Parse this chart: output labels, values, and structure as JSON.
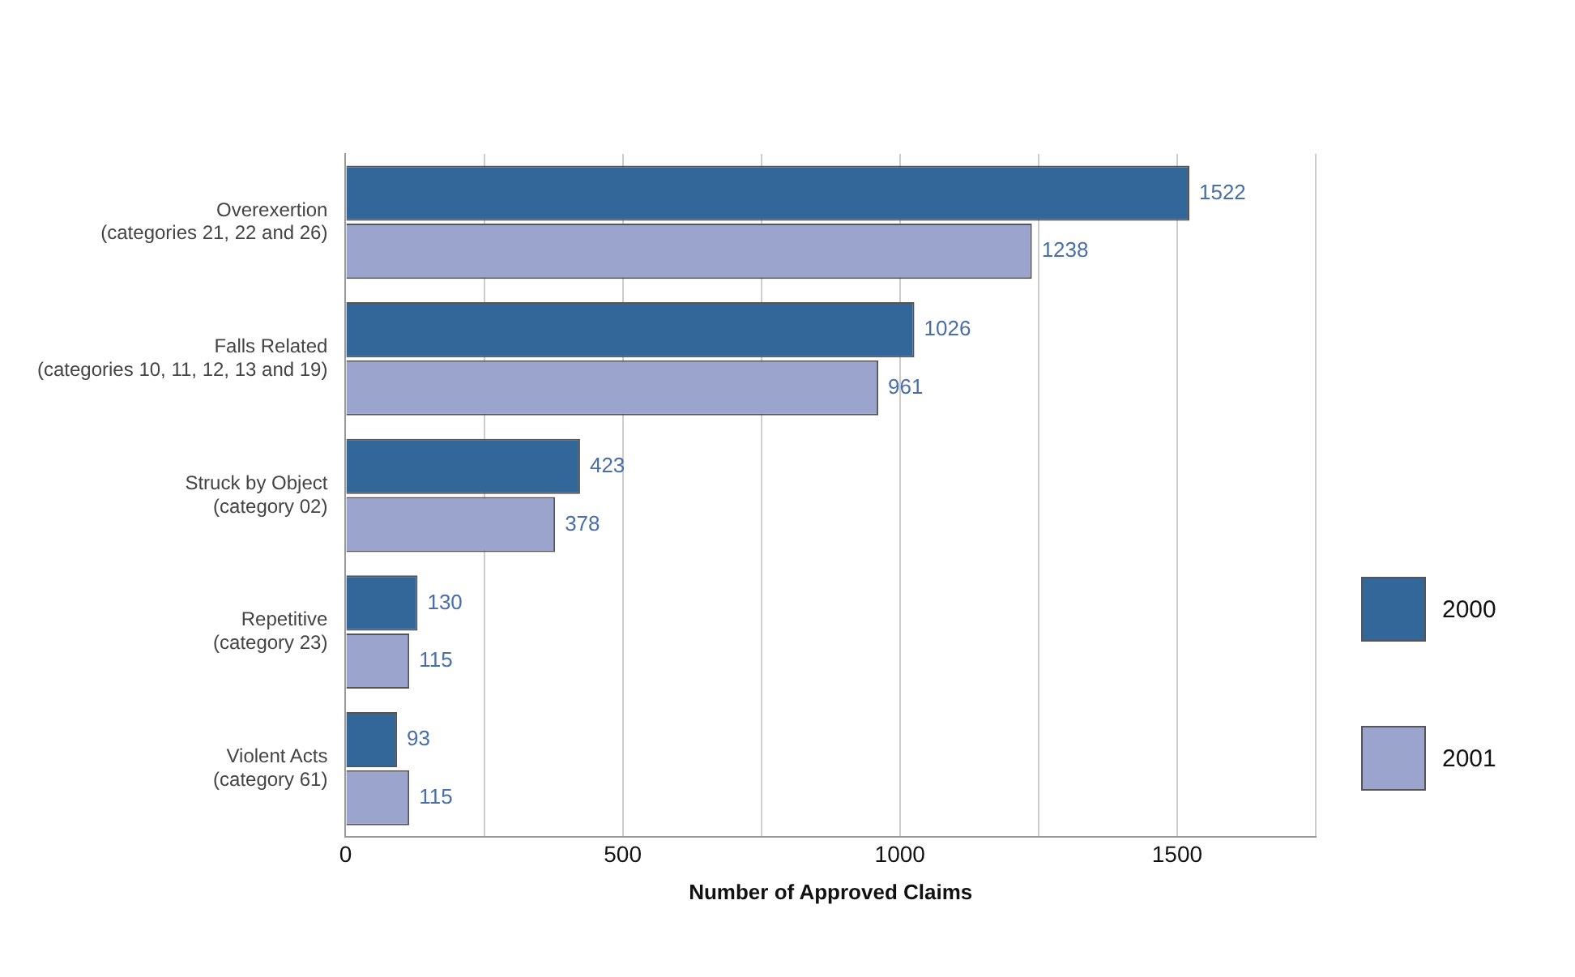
{
  "chart_data": {
    "type": "bar",
    "orientation": "horizontal",
    "xlabel": "Number of Approved Claims",
    "categories": [
      "Overexertion\n(categories 21, 22 and 26)",
      "Falls Related\n(categories 10, 11, 12, 13 and 19)",
      "Struck by Object\n(category 02)",
      "Repetitive\n(category 23)",
      "Violent Acts\n(category 61)"
    ],
    "series": [
      {
        "name": "2000",
        "color": "#336699",
        "values": [
          1522,
          1026,
          423,
          130,
          93
        ]
      },
      {
        "name": "2001",
        "color": "#9aa4cc",
        "values": [
          1238,
          961,
          378,
          115,
          115
        ]
      }
    ],
    "xlim": [
      0,
      1750
    ],
    "xticks": [
      0,
      {
        "value": 250,
        "label": null
      },
      500,
      {
        "value": 750,
        "label": null
      },
      1000,
      {
        "value": 1250,
        "label": null
      },
      1500,
      {
        "value": 1750,
        "label": null
      }
    ],
    "grid": "x",
    "legend": "right",
    "data_labels": true
  }
}
